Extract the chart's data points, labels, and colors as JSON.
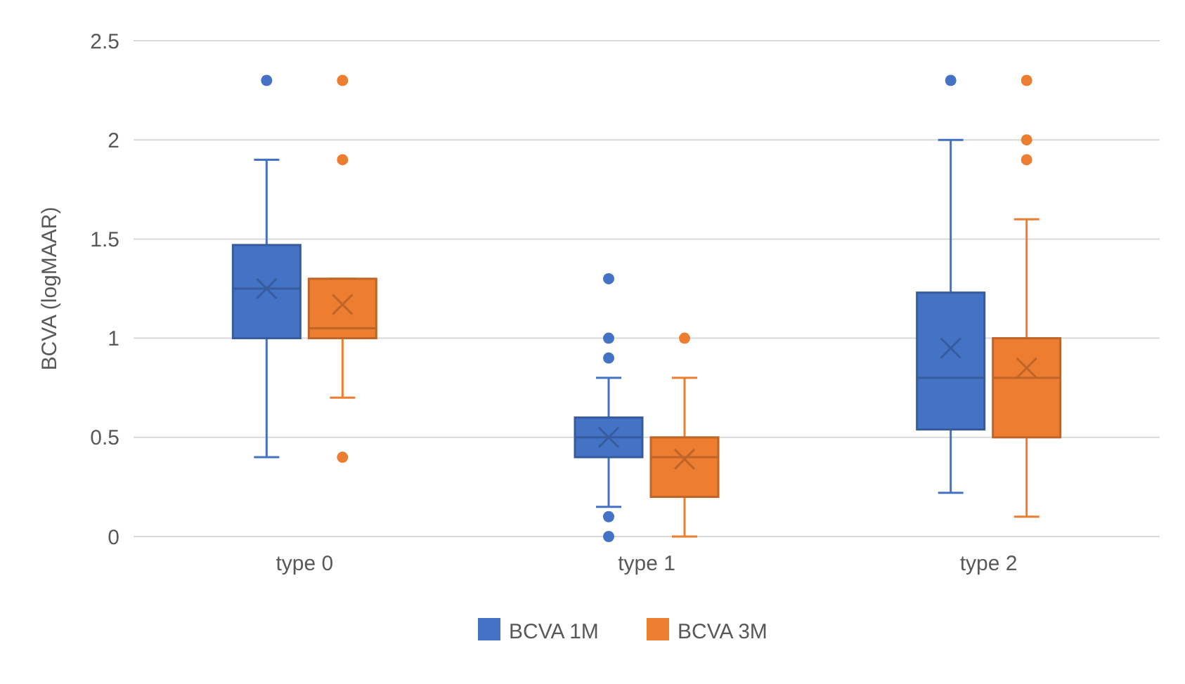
{
  "chart_data": {
    "type": "box",
    "ylabel": "BCVA (logMAAR)",
    "categories": [
      "type 0",
      "type 1",
      "type 2"
    ],
    "ylim": [
      0,
      2.5
    ],
    "yticks": [
      0,
      0.5,
      1,
      1.5,
      2,
      2.5
    ],
    "grid": "y",
    "legend": "bottom",
    "series": [
      {
        "name": "BCVA 1M",
        "color": "#4472c4",
        "boxes": [
          {
            "low": 0.4,
            "q1": 1.0,
            "median": 1.25,
            "q3": 1.47,
            "high": 1.9,
            "mean": 1.25,
            "outliers": [
              2.3
            ]
          },
          {
            "low": 0.15,
            "q1": 0.4,
            "median": 0.5,
            "q3": 0.6,
            "high": 0.8,
            "mean": 0.5,
            "outliers": [
              1.3,
              1.0,
              0.9,
              0.1,
              0
            ]
          },
          {
            "low": 0.22,
            "q1": 0.54,
            "median": 0.8,
            "q3": 1.23,
            "high": 2.0,
            "mean": 0.95,
            "outliers": [
              2.3
            ]
          }
        ]
      },
      {
        "name": "BCVA 3M",
        "color": "#ed7d31",
        "boxes": [
          {
            "low": 0.7,
            "q1": 1.0,
            "median": 1.05,
            "q3": 1.3,
            "high": 1.3,
            "mean": 1.17,
            "outliers": [
              2.3,
              1.9,
              0.4
            ]
          },
          {
            "low": 0,
            "q1": 0.2,
            "median": 0.4,
            "q3": 0.5,
            "high": 0.8,
            "mean": 0.39,
            "outliers": [
              1.0
            ]
          },
          {
            "low": 0.1,
            "q1": 0.5,
            "median": 0.8,
            "q3": 1.0,
            "high": 1.6,
            "mean": 0.85,
            "outliers": [
              2.3,
              2.0,
              1.9
            ]
          }
        ]
      }
    ]
  }
}
